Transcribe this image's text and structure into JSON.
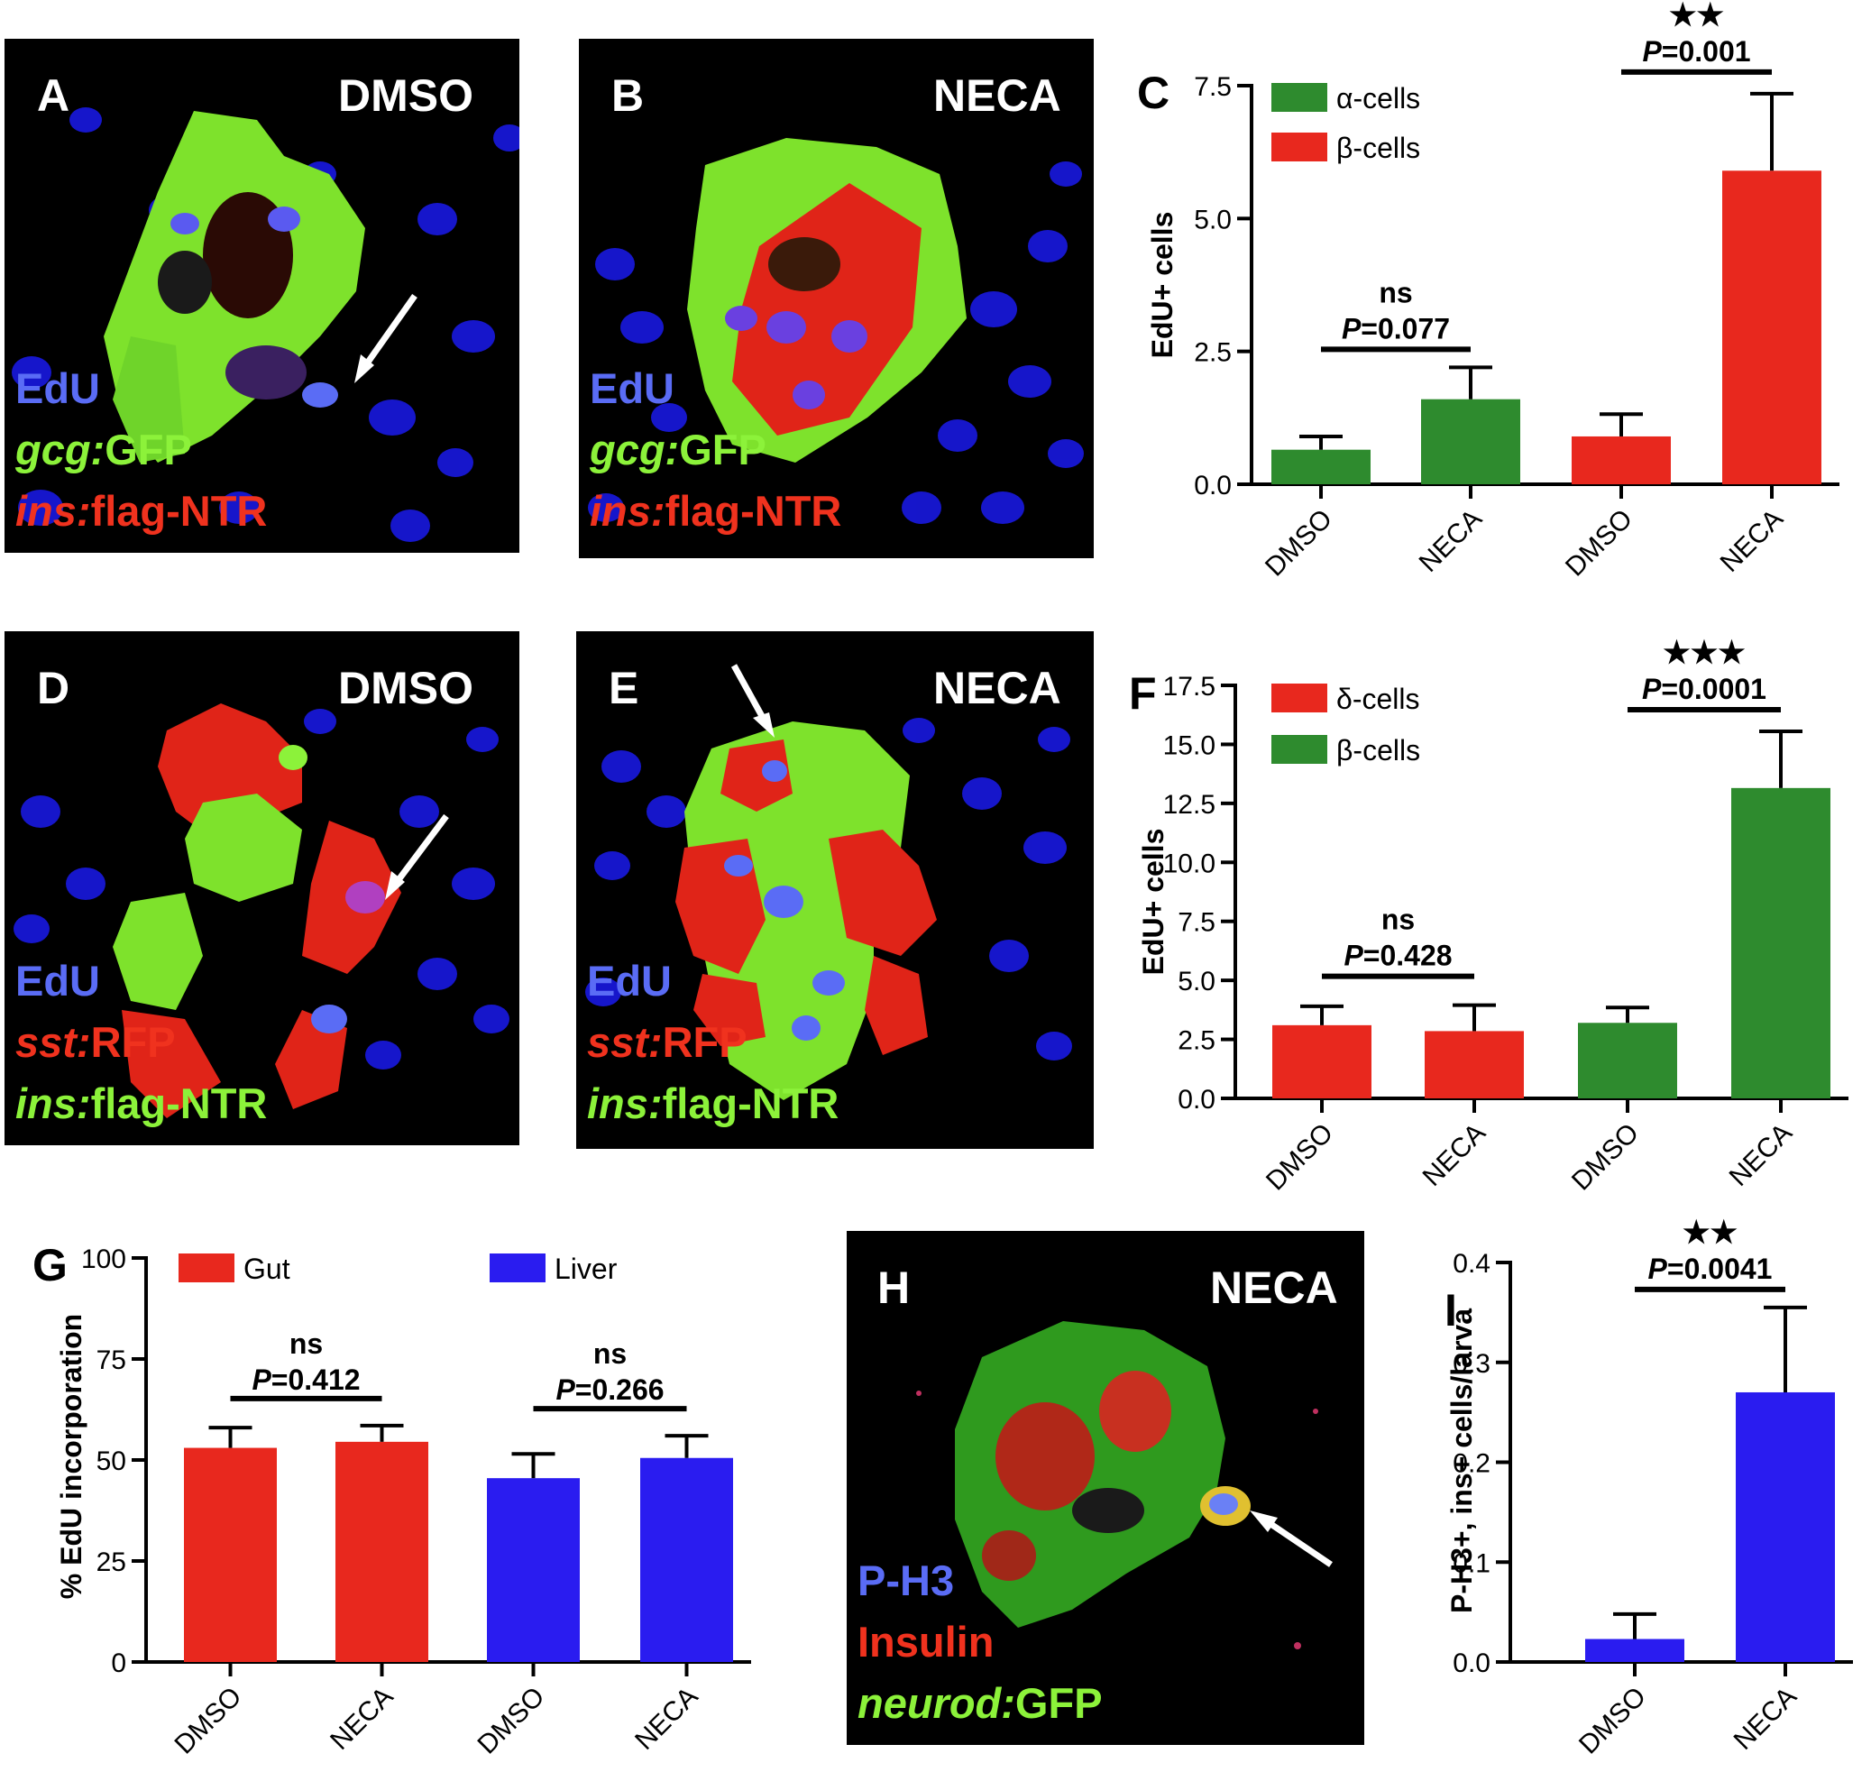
{
  "panels": {
    "A": {
      "letter": "A",
      "condition": "DMSO",
      "stain1": "EdU",
      "stain2_italic": "gcg:",
      "stain2": "GFP",
      "stain3_italic": "ins:",
      "stain3": "flag-NTR"
    },
    "B": {
      "letter": "B",
      "condition": "NECA",
      "stain1": "EdU",
      "stain2_italic": "gcg:",
      "stain2": "GFP",
      "stain3_italic": "ins:",
      "stain3": "flag-NTR"
    },
    "D": {
      "letter": "D",
      "condition": "DMSO",
      "stain1": "EdU",
      "stain2_italic": "sst:",
      "stain2": "RFP",
      "stain3_italic": "ins:",
      "stain3": "flag-NTR"
    },
    "E": {
      "letter": "E",
      "condition": "NECA",
      "stain1": "EdU",
      "stain2_italic": "sst:",
      "stain2": "RFP",
      "stain3_italic": "ins:",
      "stain3": "flag-NTR"
    },
    "H": {
      "letter": "H",
      "condition": "NECA",
      "stain1": "P-H3",
      "stain2": "Insulin",
      "stain3_italic": "neurod:",
      "stain3": "GFP"
    }
  },
  "colors": {
    "green": "#2e8b2e",
    "red": "#e8281e",
    "blue": "#2a1cf0",
    "edu_blue": "#5a6cf5",
    "gfp_green": "#8cf23a",
    "stain_red": "#f0321e"
  },
  "chart_data": [
    {
      "panel": "C",
      "type": "bar",
      "ylabel": "EdU+   cells",
      "ylim": [
        0,
        7.5
      ],
      "yticks": [
        "0.0",
        "2.5",
        "5.0",
        "7.5"
      ],
      "categories": [
        "DMSO",
        "NECA",
        "DMSO",
        "NECA"
      ],
      "values": [
        0.65,
        1.6,
        0.9,
        5.9
      ],
      "errors": [
        0.25,
        0.6,
        0.42,
        1.45
      ],
      "bar_colors": [
        "#2e8b2e",
        "#2e8b2e",
        "#e8281e",
        "#e8281e"
      ],
      "legend": [
        {
          "name": "α-cells",
          "color": "#2e8b2e"
        },
        {
          "name": "β-cells",
          "color": "#e8281e"
        }
      ],
      "annotations": [
        {
          "bars": [
            0,
            1
          ],
          "sig": "ns",
          "p_prefix": "P",
          "p_value": "=0.077"
        },
        {
          "bars": [
            2,
            3
          ],
          "sig": "★★",
          "p_prefix": "P",
          "p_value": "=0.001"
        }
      ]
    },
    {
      "panel": "F",
      "type": "bar",
      "ylabel": "EdU+   cells",
      "ylim": [
        0,
        17.5
      ],
      "yticks": [
        "0.0",
        "2.5",
        "5.0",
        "7.5",
        "10.0",
        "12.5",
        "15.0",
        "17.5"
      ],
      "categories": [
        "DMSO",
        "NECA",
        "DMSO",
        "NECA"
      ],
      "values": [
        3.1,
        2.85,
        3.2,
        13.15
      ],
      "errors": [
        0.8,
        1.1,
        0.65,
        2.4
      ],
      "bar_colors": [
        "#e8281e",
        "#e8281e",
        "#2e8b2e",
        "#2e8b2e"
      ],
      "legend": [
        {
          "name": "δ-cells",
          "color": "#e8281e"
        },
        {
          "name": "β-cells",
          "color": "#2e8b2e"
        }
      ],
      "annotations": [
        {
          "bars": [
            0,
            1
          ],
          "sig": "ns",
          "p_prefix": "P",
          "p_value": "=0.428"
        },
        {
          "bars": [
            2,
            3
          ],
          "sig": "★★★",
          "p_prefix": "P",
          "p_value": "=0.0001"
        }
      ]
    },
    {
      "panel": "G",
      "type": "bar",
      "ylabel": "%  EdU   incorporation",
      "ylim": [
        0,
        100
      ],
      "yticks": [
        "0",
        "25",
        "50",
        "75",
        "100"
      ],
      "categories": [
        "DMSO",
        "NECA",
        "DMSO",
        "NECA"
      ],
      "values": [
        53,
        54.5,
        45.5,
        50.5
      ],
      "errors": [
        5,
        4,
        6,
        5.5
      ],
      "bar_colors": [
        "#e8281e",
        "#e8281e",
        "#2a1cf0",
        "#2a1cf0"
      ],
      "legend": [
        {
          "name": "Gut",
          "color": "#e8281e"
        },
        {
          "name": "Liver",
          "color": "#2a1cf0"
        }
      ],
      "annotations": [
        {
          "bars": [
            0,
            1
          ],
          "sig": "ns",
          "p_prefix": "P",
          "p_value": "=0.412"
        },
        {
          "bars": [
            2,
            3
          ],
          "sig": "ns",
          "p_prefix": "P",
          "p_value": "=0.266"
        }
      ]
    },
    {
      "panel": "I",
      "type": "bar",
      "ylabel": "P-H3+,  ins+   cells/larva",
      "ylim": [
        0,
        0.4
      ],
      "yticks": [
        "0.0",
        "0.1",
        "0.2",
        "0.3",
        "0.4"
      ],
      "categories": [
        "DMSO",
        "NECA"
      ],
      "values": [
        0.023,
        0.27
      ],
      "errors": [
        0.025,
        0.085
      ],
      "bar_colors": [
        "#2a1cf0",
        "#2a1cf0"
      ],
      "legend": [],
      "annotations": [
        {
          "bars": [
            0,
            1
          ],
          "sig": "★★",
          "p_prefix": "P",
          "p_value": "=0.0041"
        }
      ]
    }
  ]
}
